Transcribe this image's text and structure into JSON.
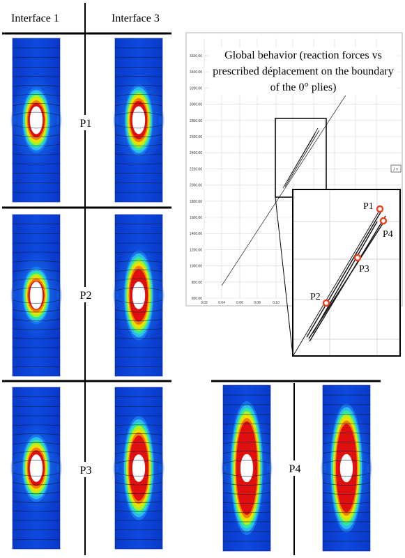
{
  "headers": {
    "col1": "Interface 1",
    "col2": "Interface 3"
  },
  "rows": [
    {
      "label": "P1",
      "colors": [
        "#e01010",
        "#00bb30"
      ]
    },
    {
      "label": "P2",
      "colors": [
        "#e01010",
        "#00bb30"
      ]
    },
    {
      "label": "P3",
      "colors": [
        "#e01010",
        "#00bb30"
      ]
    },
    {
      "label": "P4",
      "colors": [
        "#e01010",
        "#00bb30"
      ]
    }
  ],
  "graph": {
    "caption": "Global behavior (reaction forces vs prescribed déplacement on the boundary of the 0° plies)",
    "y_ticks": [
      "3600.00",
      "3400.00",
      "3200.00",
      "3000.00",
      "2800.00",
      "2600.00",
      "2400.00",
      "2200.00",
      "2000.00",
      "1800.00",
      "1600.00",
      "1400.00",
      "1200.00",
      "1000.00",
      "800.00",
      "600.00"
    ],
    "x_ticks": [
      "0.02",
      "0.04",
      "0.06",
      "0.08",
      "0.10"
    ],
    "legend_symbol": "/ +",
    "points": [
      {
        "label": "P1"
      },
      {
        "label": "P4"
      },
      {
        "label": "P3"
      },
      {
        "label": "P2"
      }
    ],
    "marker_color": "#e8401a"
  },
  "colormap": {
    "background": "#0a3fd8",
    "bands": [
      "#1a7cf0",
      "#30c8f0",
      "#30e8a0",
      "#b0f020",
      "#f0e000",
      "#f08000",
      "#e01010"
    ]
  }
}
